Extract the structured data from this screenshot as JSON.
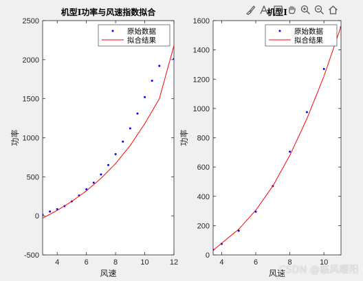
{
  "chart_data": [
    {
      "type": "scatter",
      "title": "机型I功率与风速指数拟合",
      "xlabel": "风速",
      "ylabel": "功率",
      "xlim": [
        3,
        12
      ],
      "ylim": [
        -500,
        2500
      ],
      "xticks": [
        4,
        6,
        8,
        10,
        12
      ],
      "yticks": [
        -500,
        0,
        500,
        1000,
        1500,
        2000,
        2500
      ],
      "grid": false,
      "legend_position": "top-right",
      "series": [
        {
          "name": "原始数据",
          "kind": "markers",
          "color": "#0000ff",
          "x": [
            3.0,
            3.5,
            4.0,
            4.5,
            5.0,
            5.5,
            6.0,
            6.5,
            7.0,
            7.5,
            8.0,
            8.5,
            9.0,
            9.5,
            10.0,
            10.5,
            11.0,
            12.0
          ],
          "y": [
            15,
            55,
            85,
            125,
            185,
            260,
            340,
            425,
            530,
            650,
            790,
            950,
            1120,
            1310,
            1520,
            1730,
            1920,
            2010
          ]
        },
        {
          "name": "拟合结果",
          "kind": "line",
          "color": "#ff0000",
          "x": [
            3,
            4,
            5,
            6,
            7,
            8,
            9,
            10,
            11,
            12
          ],
          "y": [
            -30,
            70,
            185,
            320,
            480,
            670,
            900,
            1180,
            1500,
            2180
          ]
        }
      ]
    },
    {
      "type": "scatter",
      "title": "机型I",
      "xlabel": "风速",
      "ylabel": "功率",
      "xlim": [
        3.5,
        11
      ],
      "ylim": [
        0,
        1600
      ],
      "xticks": [
        4,
        6,
        8,
        10
      ],
      "yticks": [
        0,
        200,
        400,
        600,
        800,
        1000,
        1200,
        1400,
        1600
      ],
      "grid": false,
      "legend_position": "top-right",
      "series": [
        {
          "name": "原始数据",
          "kind": "markers",
          "color": "#0000ff",
          "x": [
            3.5,
            4.0,
            5.0,
            6.0,
            7.0,
            8.0,
            9.0,
            10.0,
            11.0
          ],
          "y": [
            35,
            75,
            165,
            295,
            470,
            705,
            975,
            1270,
            1555
          ]
        },
        {
          "name": "拟合结果",
          "kind": "line",
          "color": "#ff0000",
          "x": [
            3.5,
            4,
            5,
            6,
            7,
            8,
            9,
            10,
            11
          ],
          "y": [
            30,
            80,
            175,
            305,
            470,
            680,
            930,
            1220,
            1560
          ]
        }
      ]
    }
  ],
  "toolbar": {
    "icons": [
      "brush-icon",
      "data-tip-icon",
      "legend-insert-icon",
      "pan-icon",
      "zoom-in-icon",
      "zoom-out-icon",
      "home-icon"
    ]
  },
  "watermark": "CSDN @临风暖阳"
}
